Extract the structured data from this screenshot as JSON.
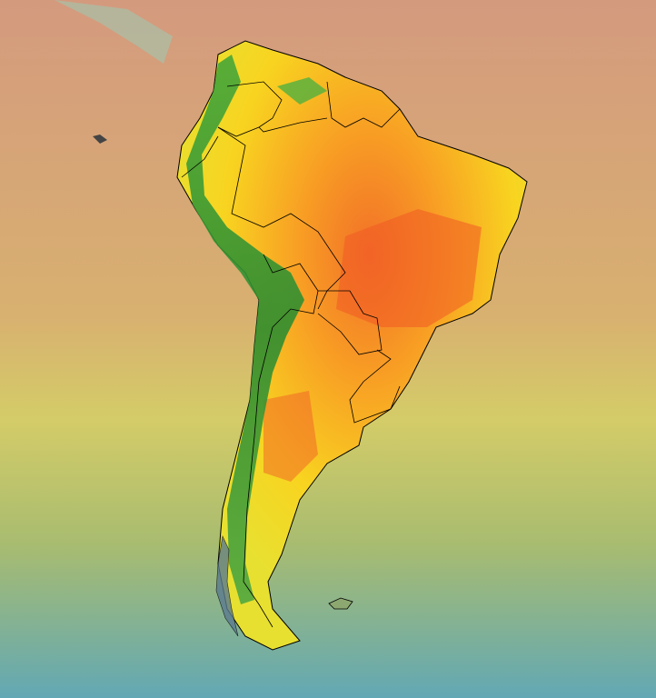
{
  "map": {
    "region": "South America",
    "colors": {
      "ocean_north": "#d4a07a",
      "ocean_mid": "#d8c868",
      "ocean_south": "#6aaab0",
      "land_hot": "#f05020",
      "land_warm": "#f8a020",
      "land_mild": "#f8e020",
      "land_cool": "#40a030",
      "border": "#000000"
    }
  }
}
